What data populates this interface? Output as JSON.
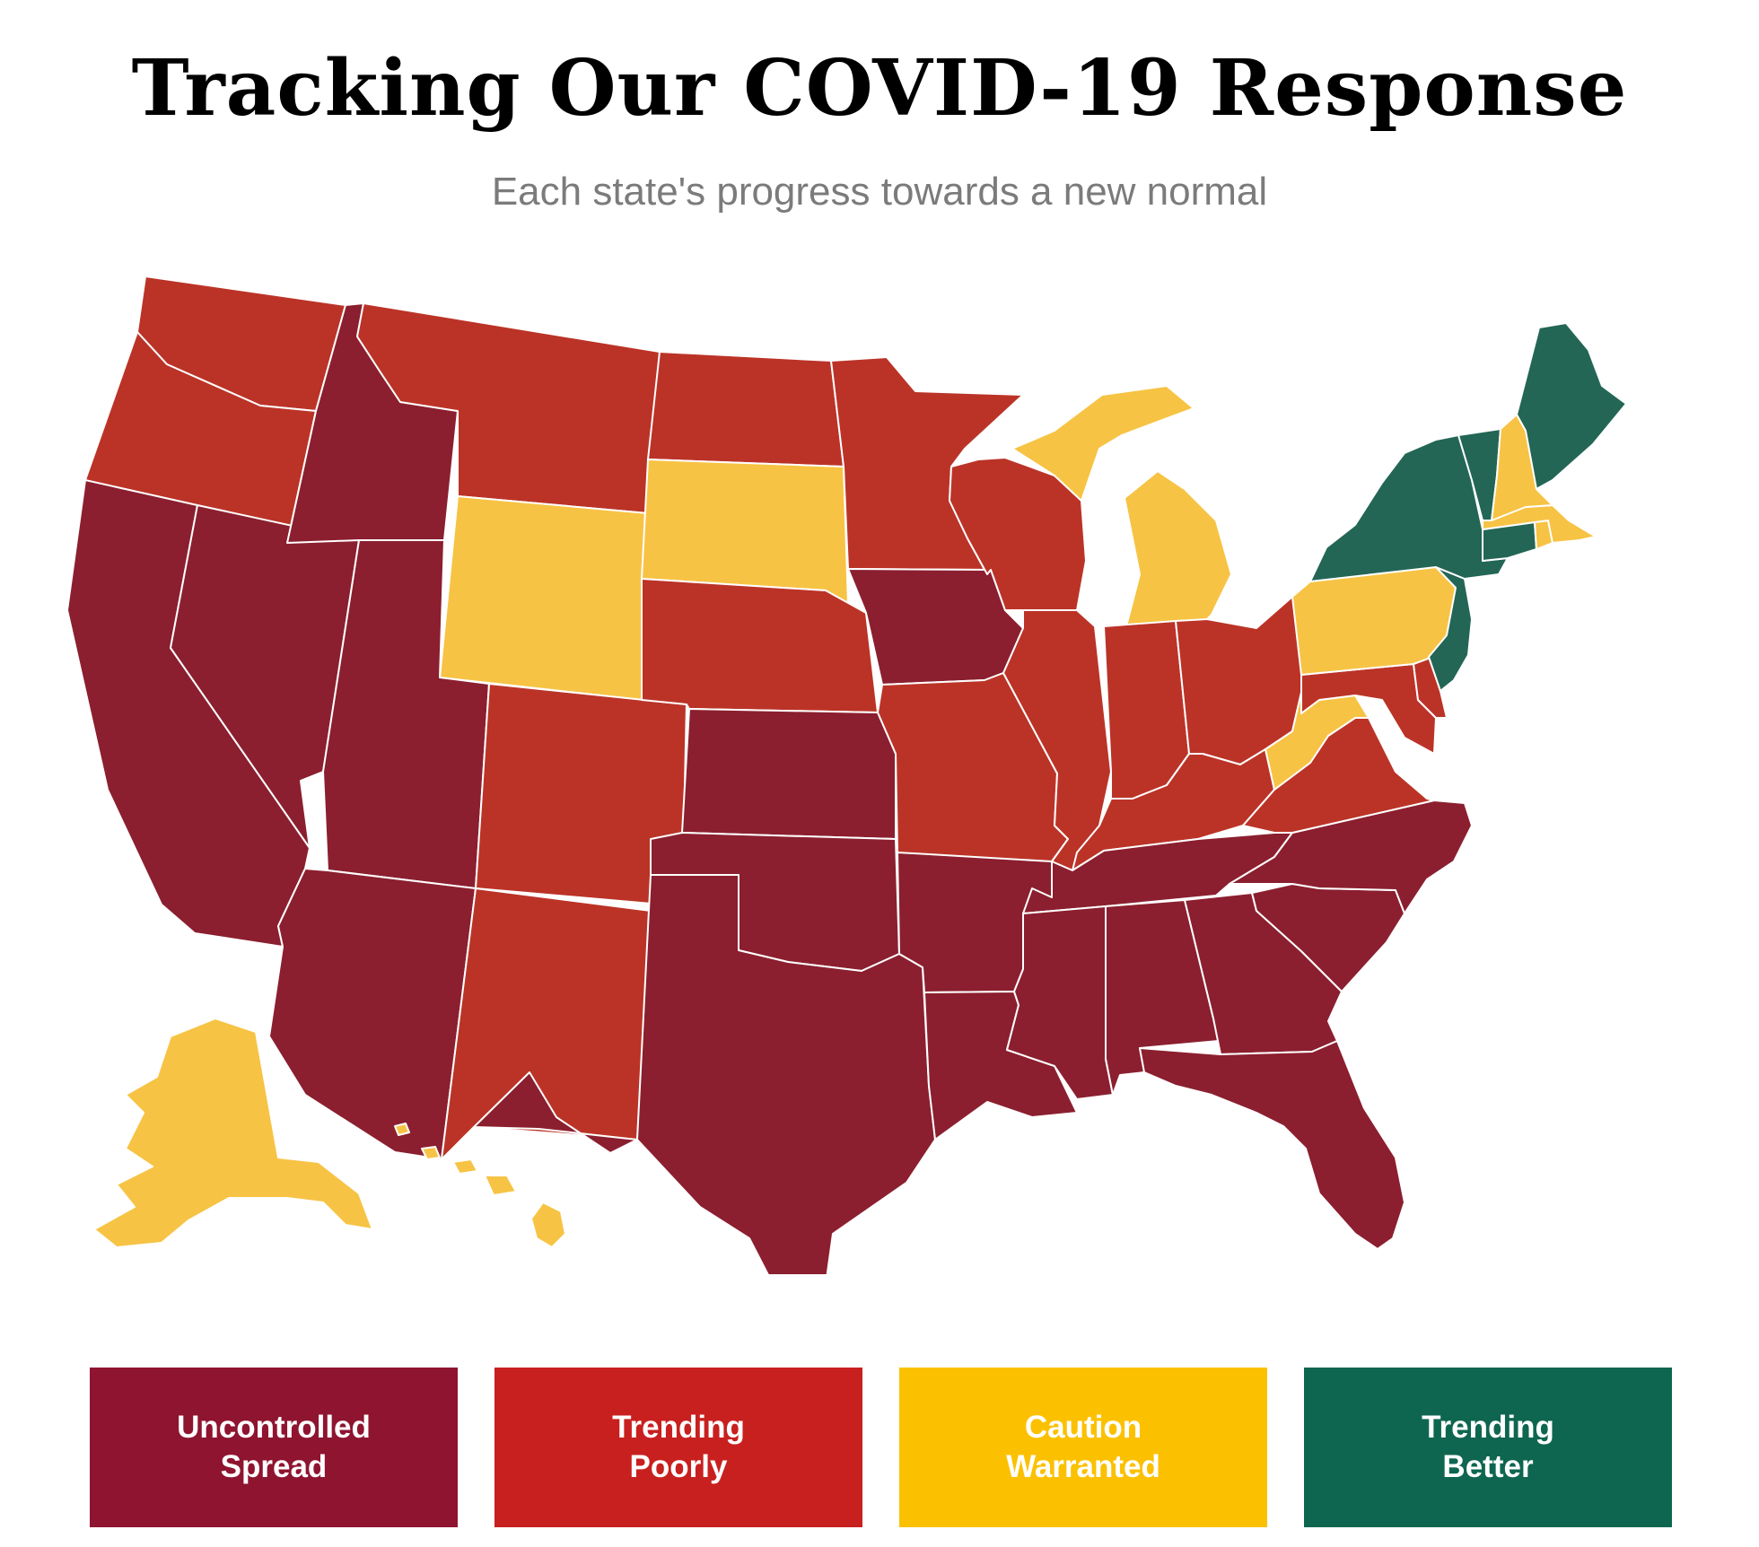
{
  "header": {
    "title": "Tracking Our COVID-19 Response",
    "subtitle": "Each state's progress towards a new normal"
  },
  "categories": {
    "uncontrolled": {
      "label": "Uncontrolled\nSpread",
      "color": "#8b1f2f"
    },
    "trending_poorly": {
      "label": "Trending\nPoorly",
      "color": "#bb3327"
    },
    "caution": {
      "label": "Caution\nWarranted",
      "color": "#f7c344"
    },
    "trending_better": {
      "label": "Trending\nBetter",
      "color": "#236655"
    }
  },
  "legend": [
    {
      "key": "uncontrolled",
      "label": "Uncontrolled\nSpread",
      "color": "#8f1430"
    },
    {
      "key": "trending_poorly",
      "label": "Trending\nPoorly",
      "color": "#c8201f"
    },
    {
      "key": "caution",
      "label": "Caution\nWarranted",
      "color": "#fbc100"
    },
    {
      "key": "trending_better",
      "label": "Trending\nBetter",
      "color": "#0f6650"
    }
  ],
  "states": [
    {
      "name": "Washington",
      "status": "trending_poorly"
    },
    {
      "name": "Oregon",
      "status": "trending_poorly"
    },
    {
      "name": "California",
      "status": "uncontrolled"
    },
    {
      "name": "Nevada",
      "status": "uncontrolled"
    },
    {
      "name": "Idaho",
      "status": "uncontrolled"
    },
    {
      "name": "Montana",
      "status": "trending_poorly"
    },
    {
      "name": "Wyoming",
      "status": "caution"
    },
    {
      "name": "Utah",
      "status": "uncontrolled"
    },
    {
      "name": "Arizona",
      "status": "uncontrolled"
    },
    {
      "name": "Colorado",
      "status": "trending_poorly"
    },
    {
      "name": "New Mexico",
      "status": "trending_poorly"
    },
    {
      "name": "North Dakota",
      "status": "trending_poorly"
    },
    {
      "name": "South Dakota",
      "status": "caution"
    },
    {
      "name": "Nebraska",
      "status": "trending_poorly"
    },
    {
      "name": "Kansas",
      "status": "uncontrolled"
    },
    {
      "name": "Oklahoma",
      "status": "uncontrolled"
    },
    {
      "name": "Texas",
      "status": "uncontrolled"
    },
    {
      "name": "Minnesota",
      "status": "trending_poorly"
    },
    {
      "name": "Iowa",
      "status": "uncontrolled"
    },
    {
      "name": "Missouri",
      "status": "trending_poorly"
    },
    {
      "name": "Arkansas",
      "status": "uncontrolled"
    },
    {
      "name": "Louisiana",
      "status": "uncontrolled"
    },
    {
      "name": "Wisconsin",
      "status": "trending_poorly"
    },
    {
      "name": "Illinois",
      "status": "trending_poorly"
    },
    {
      "name": "Michigan",
      "status": "caution"
    },
    {
      "name": "Indiana",
      "status": "trending_poorly"
    },
    {
      "name": "Ohio",
      "status": "trending_poorly"
    },
    {
      "name": "Kentucky",
      "status": "trending_poorly"
    },
    {
      "name": "Tennessee",
      "status": "uncontrolled"
    },
    {
      "name": "Mississippi",
      "status": "uncontrolled"
    },
    {
      "name": "Alabama",
      "status": "uncontrolled"
    },
    {
      "name": "Georgia",
      "status": "uncontrolled"
    },
    {
      "name": "Florida",
      "status": "uncontrolled"
    },
    {
      "name": "South Carolina",
      "status": "uncontrolled"
    },
    {
      "name": "North Carolina",
      "status": "uncontrolled"
    },
    {
      "name": "Virginia",
      "status": "trending_poorly"
    },
    {
      "name": "West Virginia",
      "status": "caution"
    },
    {
      "name": "Maryland",
      "status": "trending_poorly"
    },
    {
      "name": "Delaware",
      "status": "trending_poorly"
    },
    {
      "name": "Pennsylvania",
      "status": "caution"
    },
    {
      "name": "New Jersey",
      "status": "trending_better"
    },
    {
      "name": "New York",
      "status": "trending_better"
    },
    {
      "name": "Connecticut",
      "status": "trending_better"
    },
    {
      "name": "Rhode Island",
      "status": "caution"
    },
    {
      "name": "Massachusetts",
      "status": "caution"
    },
    {
      "name": "Vermont",
      "status": "trending_better"
    },
    {
      "name": "New Hampshire",
      "status": "caution"
    },
    {
      "name": "Maine",
      "status": "trending_better"
    },
    {
      "name": "Alaska",
      "status": "caution"
    },
    {
      "name": "Hawaii",
      "status": "caution"
    }
  ]
}
